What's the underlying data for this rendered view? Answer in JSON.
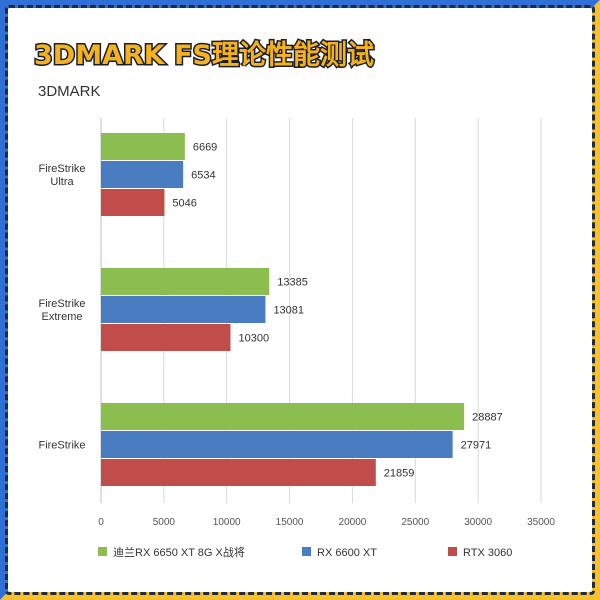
{
  "header": {
    "title": "3DMARK FS理论性能测试"
  },
  "colors": {
    "frame_blue": "#2f6fd6",
    "frame_yellow": "#f6c12a",
    "title_fill": "#f5b21c"
  },
  "chart_data": {
    "type": "bar",
    "orientation": "horizontal",
    "title": "3DMARK",
    "categories": [
      "FireStrike Ultra",
      "FireStrike Extreme",
      "FireStrike"
    ],
    "series": [
      {
        "name": "迪兰RX 6650 XT 8G X战将",
        "color": "#8bbd4f",
        "values": [
          6669,
          13385,
          28887
        ]
      },
      {
        "name": "RX 6600 XT",
        "color": "#4a7cc2",
        "values": [
          6534,
          13081,
          27971
        ]
      },
      {
        "name": "RTX 3060",
        "color": "#c14d4a",
        "values": [
          5046,
          10300,
          21859
        ]
      }
    ],
    "xlim": [
      0,
      35000
    ],
    "xticks": [
      0,
      5000,
      10000,
      15000,
      20000,
      25000,
      30000,
      35000
    ],
    "grid": true,
    "legend_position": "bottom"
  }
}
